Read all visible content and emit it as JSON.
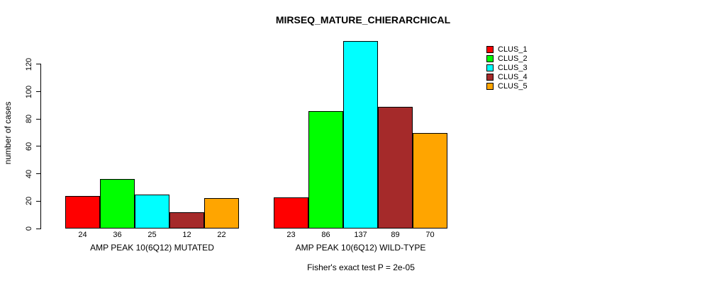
{
  "chart": {
    "title": "MIRSEQ_MATURE_CHIERARCHICAL",
    "ylabel": "number of cases",
    "footer": "Fisher's exact test P = 2e-05"
  },
  "chart_data": {
    "type": "bar",
    "title": "MIRSEQ_MATURE_CHIERARCHICAL",
    "xlabel": "",
    "ylabel": "number of cases",
    "categories": [
      "AMP PEAK 10(6Q12) MUTATED",
      "AMP PEAK 10(6Q12) WILD-TYPE"
    ],
    "series": [
      {
        "name": "CLUS_1",
        "color": "#FF0000",
        "values": [
          24,
          23
        ]
      },
      {
        "name": "CLUS_2",
        "color": "#00FF00",
        "values": [
          36,
          86
        ]
      },
      {
        "name": "CLUS_3",
        "color": "#00FFFF",
        "values": [
          25,
          137
        ]
      },
      {
        "name": "CLUS_4",
        "color": "#A52A2A",
        "values": [
          12,
          89
        ]
      },
      {
        "name": "CLUS_5",
        "color": "#FFA500",
        "values": [
          22,
          70
        ]
      }
    ],
    "bar_value_labels": [
      [
        24,
        36,
        25,
        12,
        22
      ],
      [
        23,
        86,
        137,
        89,
        70
      ]
    ],
    "yticks": [
      0,
      20,
      40,
      60,
      80,
      100,
      120
    ],
    "ylim": [
      0,
      137
    ],
    "grid": false,
    "legend_position": "right-outside-top",
    "annotation": "Fisher's exact test P = 2e-05"
  }
}
